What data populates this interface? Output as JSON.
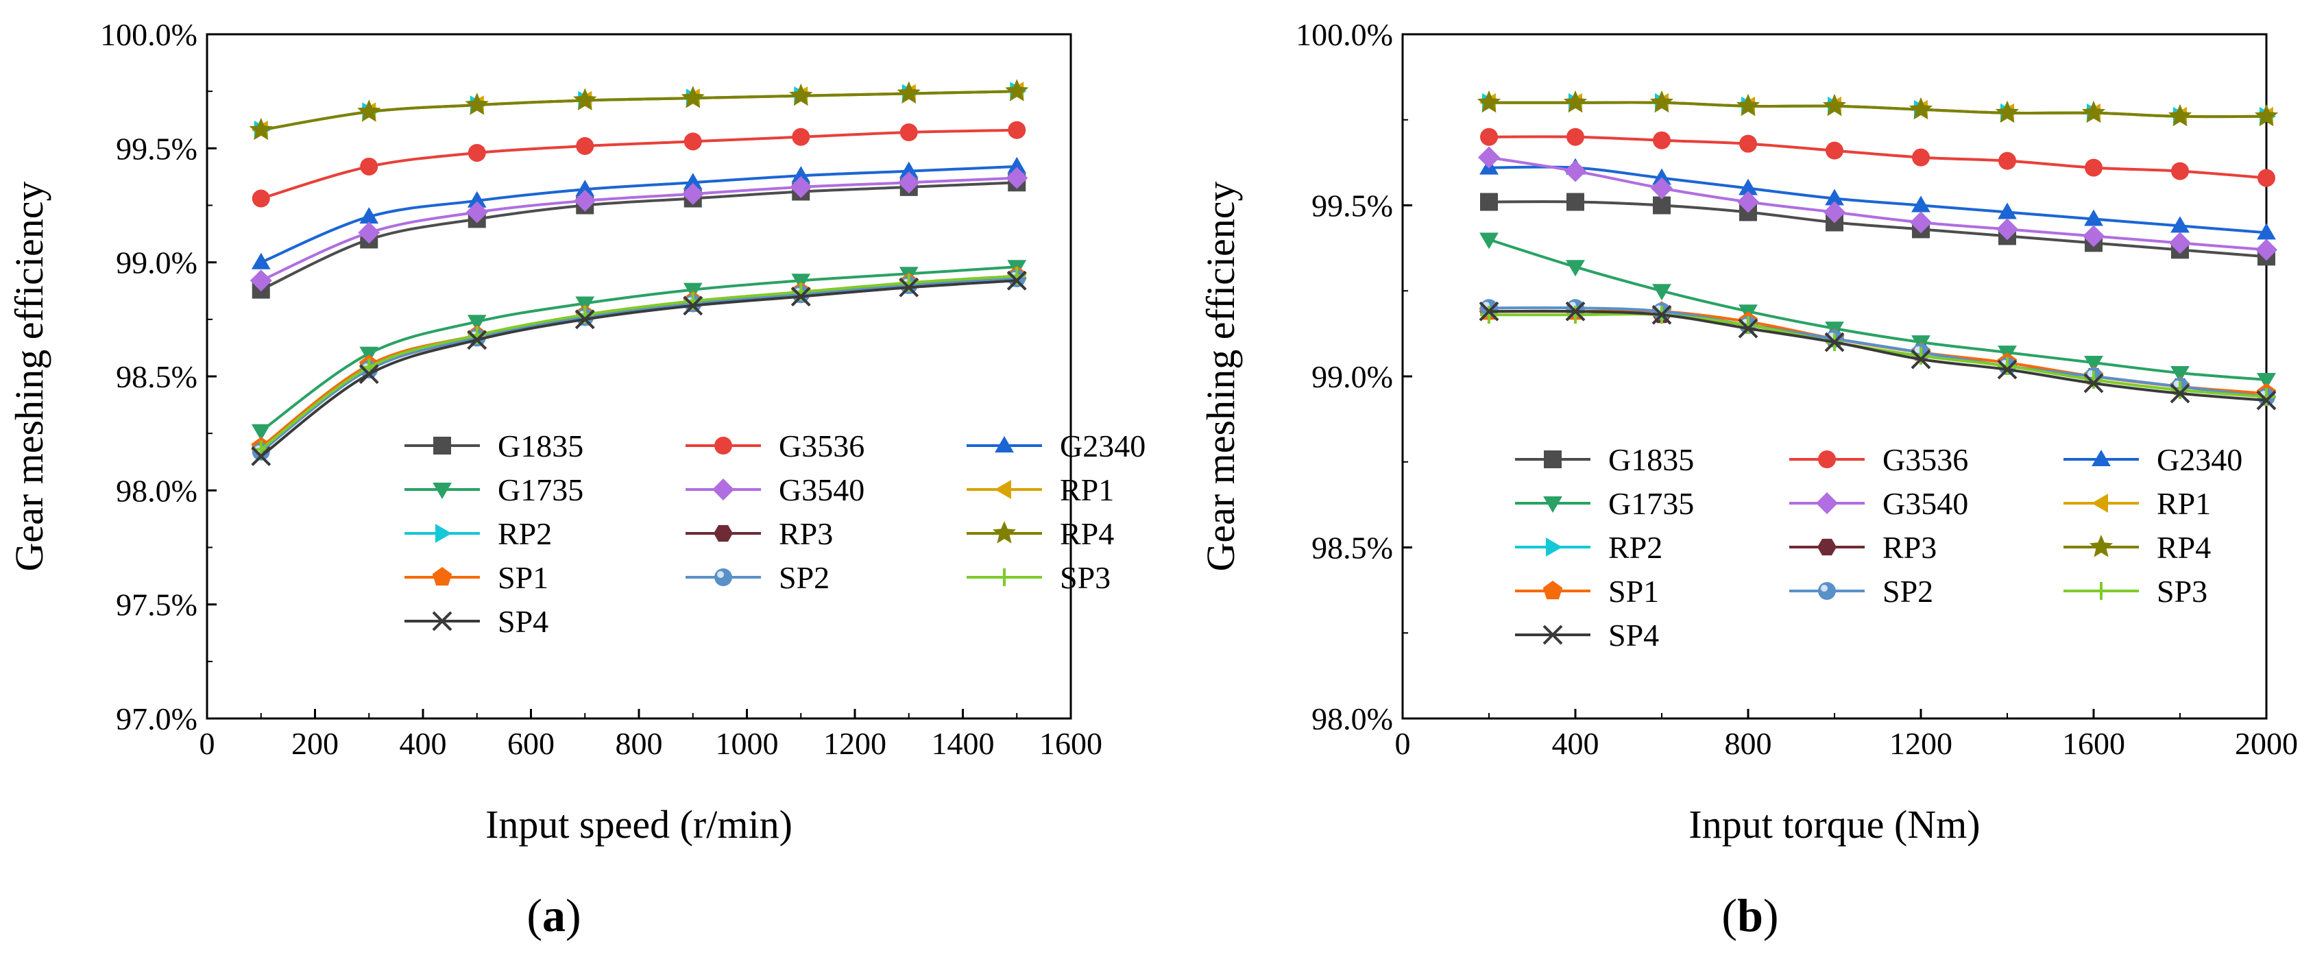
{
  "figure": {
    "panel_labels": [
      {
        "open": "(",
        "letter": "a",
        "close": ")"
      },
      {
        "open": "(",
        "letter": "b",
        "close": ")"
      }
    ]
  },
  "series_styles": {
    "G1835": {
      "color": "#4d4d4d",
      "marker": "square"
    },
    "G3536": {
      "color": "#e8403a",
      "marker": "circle"
    },
    "G2340": {
      "color": "#1b66d4",
      "marker": "triangle-up"
    },
    "G1735": {
      "color": "#2aa265",
      "marker": "triangle-down"
    },
    "G3540": {
      "color": "#b06ee0",
      "marker": "diamond"
    },
    "RP1": {
      "color": "#d9a400",
      "marker": "triangle-left"
    },
    "RP2": {
      "color": "#14c8d8",
      "marker": "triangle-right"
    },
    "RP3": {
      "color": "#6e2b35",
      "marker": "hexagon"
    },
    "RP4": {
      "color": "#808000",
      "marker": "star"
    },
    "SP1": {
      "color": "#f56a0a",
      "marker": "pentagon"
    },
    "SP2": {
      "color": "#5a90c8",
      "marker": "ball"
    },
    "SP3": {
      "color": "#7ecb2a",
      "marker": "plus"
    },
    "SP4": {
      "color": "#3a3a3a",
      "marker": "x"
    }
  },
  "chart_data": [
    {
      "type": "line",
      "title": "",
      "xlabel": "Input speed (r/min)",
      "ylabel": "Gear meshing efficiency",
      "xlim": [
        0,
        1600
      ],
      "ylim": [
        97.0,
        100.0
      ],
      "xticks": [
        0,
        200,
        400,
        600,
        800,
        1000,
        1200,
        1400,
        1600
      ],
      "xtick_labels": [
        "0",
        "200",
        "400",
        "600",
        "800",
        "1000",
        "1200",
        "1400",
        "1600"
      ],
      "yticks": [
        97.0,
        97.5,
        98.0,
        98.5,
        99.0,
        99.5,
        100.0
      ],
      "ytick_labels": [
        "97.0%",
        "97.5%",
        "98.0%",
        "98.5%",
        "99.0%",
        "99.5%",
        "100.0%"
      ],
      "grid": false,
      "legend": "center-right, 3 columns",
      "x": [
        100,
        300,
        500,
        700,
        900,
        1100,
        1300,
        1500
      ],
      "series": [
        {
          "name": "G1835",
          "values": [
            98.88,
            99.1,
            99.19,
            99.25,
            99.28,
            99.31,
            99.33,
            99.35
          ]
        },
        {
          "name": "G3536",
          "values": [
            99.28,
            99.42,
            99.48,
            99.51,
            99.53,
            99.55,
            99.57,
            99.58
          ]
        },
        {
          "name": "G2340",
          "values": [
            99.0,
            99.2,
            99.27,
            99.32,
            99.35,
            99.38,
            99.4,
            99.42
          ]
        },
        {
          "name": "G1735",
          "values": [
            98.26,
            98.6,
            98.74,
            98.82,
            98.88,
            98.92,
            98.95,
            98.98
          ]
        },
        {
          "name": "G3540",
          "values": [
            98.92,
            99.13,
            99.22,
            99.27,
            99.3,
            99.33,
            99.35,
            99.37
          ]
        },
        {
          "name": "RP1",
          "values": [
            99.58,
            99.66,
            99.69,
            99.71,
            99.72,
            99.73,
            99.74,
            99.75
          ]
        },
        {
          "name": "RP2",
          "values": [
            99.58,
            99.66,
            99.69,
            99.71,
            99.72,
            99.73,
            99.74,
            99.75
          ]
        },
        {
          "name": "RP3",
          "values": [
            98.18,
            98.53,
            98.67,
            98.76,
            98.82,
            98.86,
            98.9,
            98.93
          ]
        },
        {
          "name": "RP4",
          "values": [
            99.58,
            99.66,
            99.69,
            99.71,
            99.72,
            99.73,
            99.74,
            99.75
          ]
        },
        {
          "name": "SP1",
          "values": [
            98.19,
            98.55,
            98.68,
            98.77,
            98.83,
            98.87,
            98.91,
            98.94
          ]
        },
        {
          "name": "SP2",
          "values": [
            98.17,
            98.53,
            98.67,
            98.76,
            98.82,
            98.86,
            98.9,
            98.93
          ]
        },
        {
          "name": "SP3",
          "values": [
            98.18,
            98.54,
            98.68,
            98.77,
            98.83,
            98.87,
            98.91,
            98.94
          ]
        },
        {
          "name": "SP4",
          "values": [
            98.15,
            98.51,
            98.66,
            98.75,
            98.81,
            98.85,
            98.89,
            98.92
          ]
        }
      ]
    },
    {
      "type": "line",
      "title": "",
      "xlabel": "Input torque (Nm)",
      "ylabel": "Gear meshing efficiency",
      "xlim": [
        0,
        2000
      ],
      "ylim": [
        98.0,
        100.0
      ],
      "xticks": [
        0,
        400,
        800,
        1200,
        1600,
        2000
      ],
      "xtick_labels": [
        "0",
        "400",
        "800",
        "1200",
        "1600",
        "2000"
      ],
      "yticks": [
        98.0,
        98.5,
        99.0,
        99.5,
        100.0
      ],
      "ytick_labels": [
        "98.0%",
        "98.5%",
        "99.0%",
        "99.5%",
        "100.0%"
      ],
      "grid": false,
      "legend": "center-right, 3 columns",
      "x": [
        200,
        400,
        600,
        800,
        1000,
        1200,
        1400,
        1600,
        1800,
        2000
      ],
      "series": [
        {
          "name": "G1835",
          "values": [
            99.51,
            99.51,
            99.5,
            99.48,
            99.45,
            99.43,
            99.41,
            99.39,
            99.37,
            99.35
          ]
        },
        {
          "name": "G3536",
          "values": [
            99.7,
            99.7,
            99.69,
            99.68,
            99.66,
            99.64,
            99.63,
            99.61,
            99.6,
            99.58
          ]
        },
        {
          "name": "G2340",
          "values": [
            99.61,
            99.61,
            99.58,
            99.55,
            99.52,
            99.5,
            99.48,
            99.46,
            99.44,
            99.42
          ]
        },
        {
          "name": "G1735",
          "values": [
            99.4,
            99.32,
            99.25,
            99.19,
            99.14,
            99.1,
            99.07,
            99.04,
            99.01,
            98.99
          ]
        },
        {
          "name": "G3540",
          "values": [
            99.64,
            99.6,
            99.55,
            99.51,
            99.48,
            99.45,
            99.43,
            99.41,
            99.39,
            99.37
          ]
        },
        {
          "name": "RP1",
          "values": [
            99.8,
            99.8,
            99.8,
            99.79,
            99.79,
            99.78,
            99.77,
            99.77,
            99.76,
            99.76
          ]
        },
        {
          "name": "RP2",
          "values": [
            99.8,
            99.8,
            99.8,
            99.79,
            99.79,
            99.78,
            99.77,
            99.77,
            99.76,
            99.76
          ]
        },
        {
          "name": "RP3",
          "values": [
            99.19,
            99.19,
            99.18,
            99.15,
            99.11,
            99.07,
            99.03,
            99.0,
            98.97,
            98.94
          ]
        },
        {
          "name": "RP4",
          "values": [
            99.8,
            99.8,
            99.8,
            99.79,
            99.79,
            99.78,
            99.77,
            99.77,
            99.76,
            99.76
          ]
        },
        {
          "name": "SP1",
          "values": [
            99.19,
            99.19,
            99.19,
            99.16,
            99.11,
            99.07,
            99.04,
            99.0,
            98.97,
            98.95
          ]
        },
        {
          "name": "SP2",
          "values": [
            99.2,
            99.2,
            99.19,
            99.15,
            99.11,
            99.07,
            99.03,
            99.0,
            98.97,
            98.94
          ]
        },
        {
          "name": "SP3",
          "values": [
            99.18,
            99.18,
            99.18,
            99.15,
            99.1,
            99.06,
            99.03,
            98.99,
            98.96,
            98.94
          ]
        },
        {
          "name": "SP4",
          "values": [
            99.19,
            99.19,
            99.18,
            99.14,
            99.1,
            99.05,
            99.02,
            98.98,
            98.95,
            98.93
          ]
        }
      ]
    }
  ]
}
